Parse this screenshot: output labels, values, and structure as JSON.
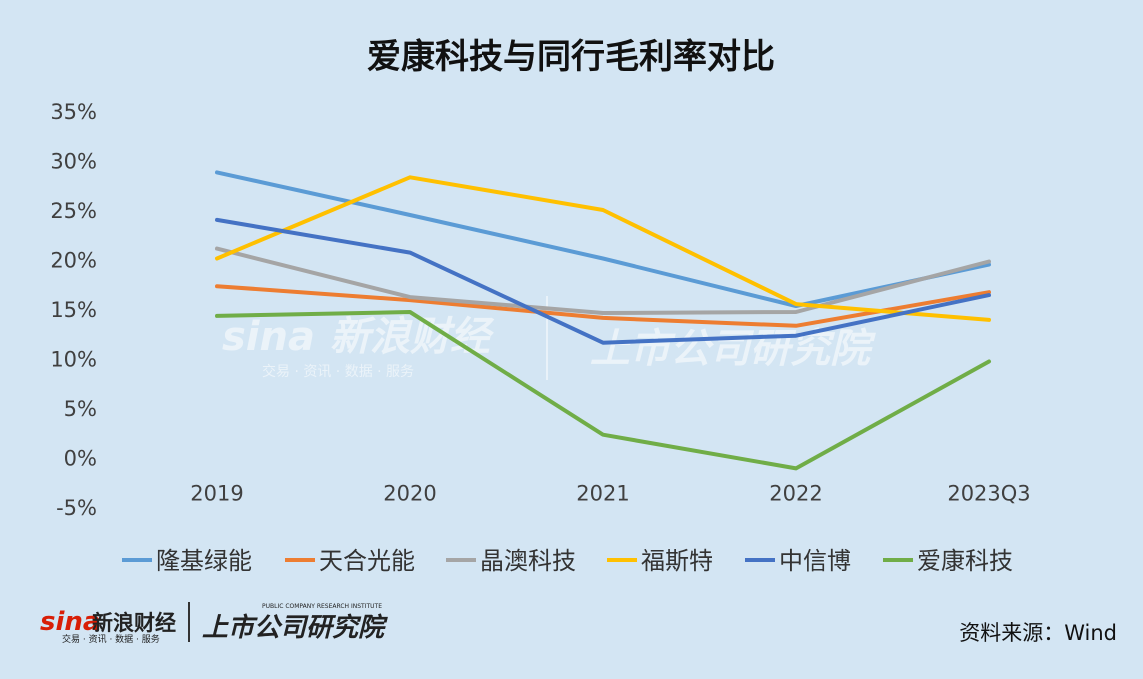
{
  "chart_data": {
    "type": "line",
    "title": "爱康科技与同行毛利率对比",
    "categories": [
      "2019",
      "2020",
      "2021",
      "2022",
      "2023Q3"
    ],
    "yticks": [
      "35%",
      "30%",
      "25%",
      "20%",
      "15%",
      "10%",
      "5%",
      "0%",
      "-5%"
    ],
    "ylim": [
      -5,
      35
    ],
    "unit": "%",
    "grid": false,
    "legend_position": "bottom",
    "series": [
      {
        "name": "隆基绿能",
        "color": "#5b9bd5",
        "values": [
          28.9,
          24.6,
          20.2,
          15.4,
          19.6
        ]
      },
      {
        "name": "天合光能",
        "color": "#ed7d31",
        "values": [
          17.4,
          16.0,
          14.2,
          13.4,
          16.8
        ]
      },
      {
        "name": "晶澳科技",
        "color": "#a5a5a5",
        "values": [
          21.2,
          16.3,
          14.7,
          14.8,
          19.9
        ]
      },
      {
        "name": "福斯特",
        "color": "#ffc000",
        "values": [
          20.2,
          28.4,
          25.1,
          15.6,
          14.0
        ]
      },
      {
        "name": "中信博",
        "color": "#4472c4",
        "values": [
          24.1,
          20.8,
          11.7,
          12.4,
          16.5
        ]
      },
      {
        "name": "爱康科技",
        "color": "#70ad47",
        "values": [
          14.4,
          14.8,
          2.4,
          -1.0,
          9.8
        ]
      }
    ]
  },
  "watermark": {
    "brand": "sina",
    "name": "新浪财经",
    "tagline": "交易 · 资讯 · 数据 · 服务",
    "institute": "上市公司研究院"
  },
  "footer": {
    "logo_brand": "sina",
    "logo_name": "新浪财经",
    "logo_tagline": "交易 · 资讯 · 数据 · 服务",
    "institute": "上市公司研究院",
    "institute_en": "PUBLIC COMPANY RESEARCH INSTITUTE",
    "source": "资料来源：Wind"
  }
}
